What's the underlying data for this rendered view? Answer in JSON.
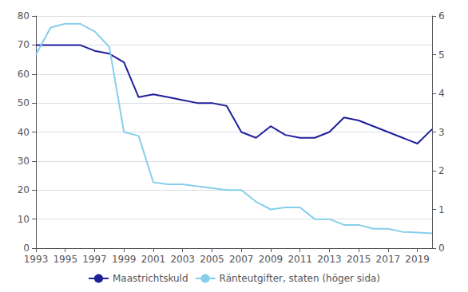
{
  "chart_data": {
    "type": "line",
    "x": [
      1993,
      1994,
      1995,
      1996,
      1997,
      1998,
      1999,
      2000,
      2001,
      2002,
      2003,
      2004,
      2005,
      2006,
      2007,
      2008,
      2009,
      2010,
      2011,
      2012,
      2013,
      2014,
      2015,
      2016,
      2017,
      2018,
      2019,
      2020
    ],
    "series": [
      {
        "name": "Maastrichtskuld",
        "color": "#1f1f9c",
        "values": [
          70,
          70,
          70,
          70,
          68,
          67,
          64,
          52,
          53,
          52,
          51,
          50,
          50,
          49,
          40,
          38,
          42,
          39,
          38,
          38,
          40,
          45,
          44,
          42,
          40,
          38,
          36,
          41
        ]
      },
      {
        "name": "Ränteutgifter, staten (höger sida)",
        "color": "#87CEEB",
        "axis": "y2",
        "values": [
          5.0,
          5.7,
          5.8,
          5.8,
          5.6,
          5.2,
          3.0,
          2.9,
          1.7,
          1.65,
          1.65,
          1.6,
          1.55,
          1.5,
          1.5,
          1.2,
          1.0,
          1.05,
          1.05,
          0.75,
          0.75,
          0.6,
          0.6,
          0.5,
          0.5,
          0.42,
          0.4,
          0.38
        ]
      }
    ],
    "xlim": [
      1993,
      2020
    ],
    "xticks": [
      1993,
      1995,
      1997,
      1999,
      2001,
      2003,
      2005,
      2007,
      2009,
      2011,
      2013,
      2015,
      2017,
      2019
    ],
    "ylim": [
      0,
      80
    ],
    "yticks": [
      0,
      10,
      20,
      30,
      40,
      50,
      60,
      70,
      80
    ],
    "y2lim": [
      0,
      6
    ],
    "y2ticks": [
      0,
      1,
      2,
      3,
      4,
      5,
      6
    ],
    "grid": true,
    "legend": "bottom"
  }
}
